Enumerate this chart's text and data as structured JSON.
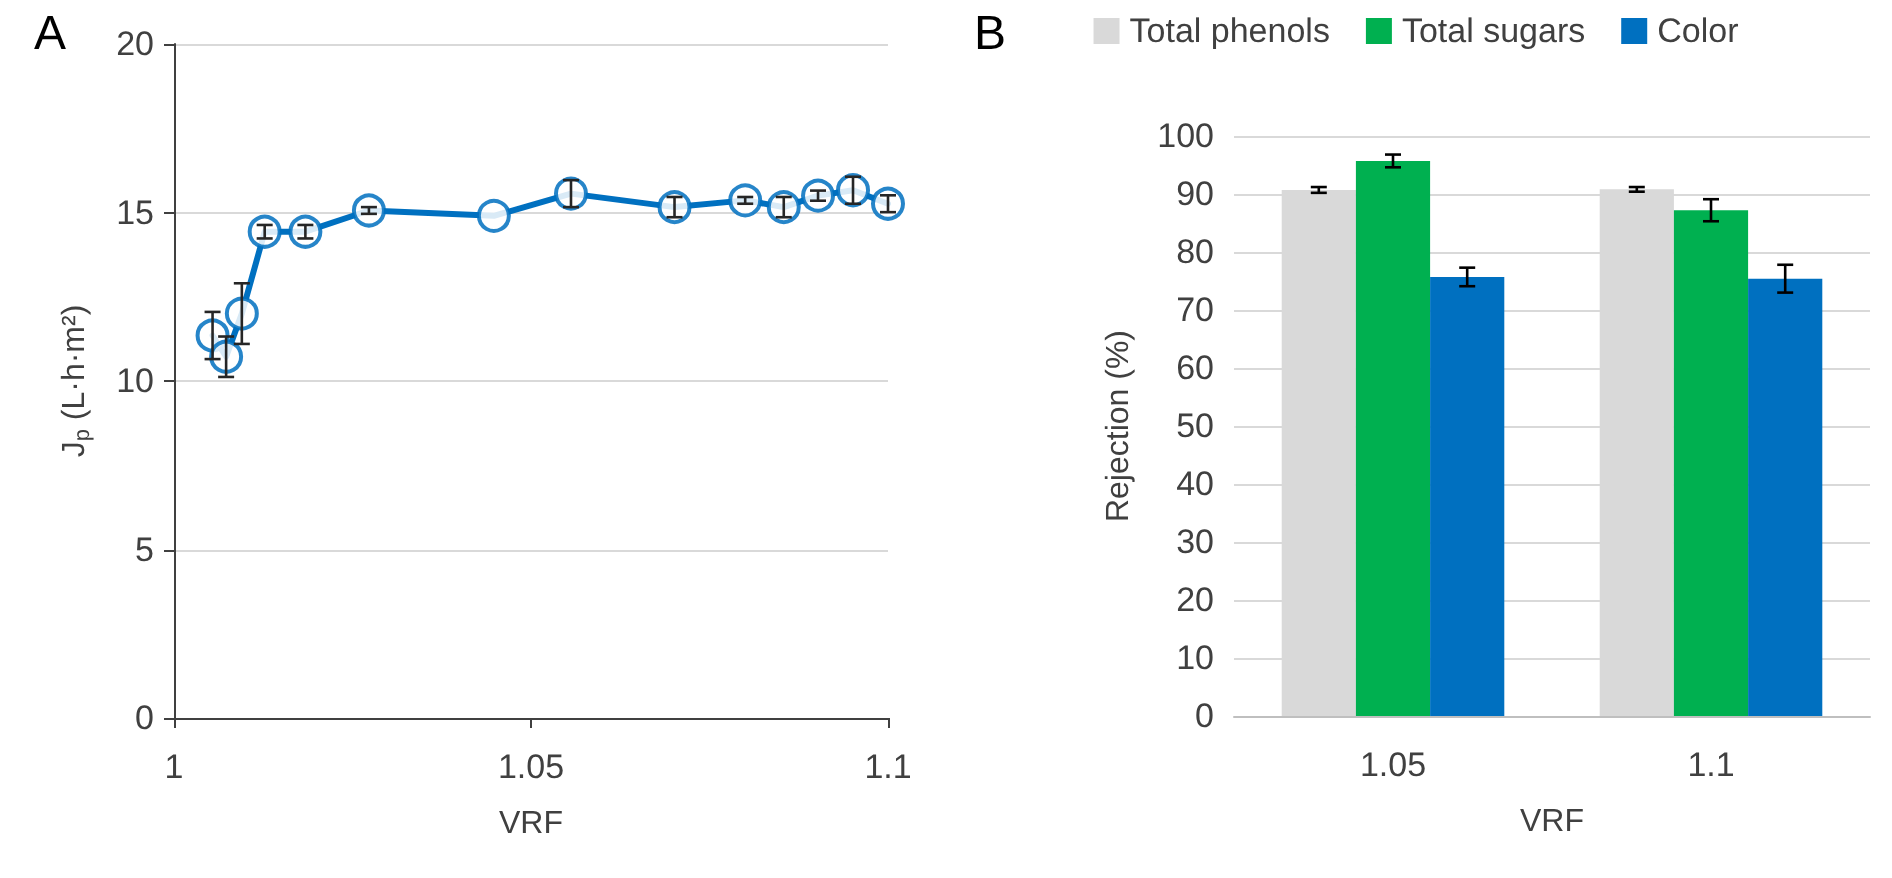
{
  "chart_data": [
    {
      "type": "line",
      "title": "A",
      "xlabel": "VRF",
      "ylabel": "J$_{p}$ (L·h·m²)",
      "xlim": [
        1,
        1.1
      ],
      "xticks": [
        1,
        1.05,
        1.1
      ],
      "ylim": [
        0,
        20
      ],
      "yticks": [
        0,
        5,
        10,
        15,
        20
      ],
      "grid": "y",
      "legend": false,
      "marker": "circle",
      "line_style": "solid",
      "series": [
        {
          "color": "#0070c0",
          "x": [
            1.0054,
            1.0073,
            1.0095,
            1.0127,
            1.0184,
            1.0273,
            1.0448,
            1.0556,
            1.0701,
            1.08,
            1.0854,
            1.0902,
            1.0951,
            1.1
          ],
          "values": [
            11.35,
            10.72,
            12.0,
            14.43,
            14.43,
            15.06,
            14.9,
            15.56,
            15.16,
            15.36,
            15.16,
            15.5,
            15.66,
            15.26
          ],
          "errors": [
            0.7,
            0.6,
            0.9,
            0.2,
            0.2,
            0.1,
            null,
            0.4,
            0.3,
            0.1,
            0.3,
            0.15,
            0.4,
            0.25
          ]
        }
      ]
    },
    {
      "type": "bar",
      "title": "B",
      "xlabel": "VRF",
      "ylabel": "Rejection (%)",
      "categories": [
        "1.05",
        "1.1"
      ],
      "ylim": [
        0,
        100
      ],
      "yticks": [
        0,
        10,
        20,
        30,
        40,
        50,
        60,
        70,
        80,
        90,
        100
      ],
      "grid": "y",
      "legend": "top",
      "series": [
        {
          "name": "Total phenols",
          "color": "#d9d9d9",
          "values": [
            90.7,
            90.8
          ],
          "errors": [
            0.5,
            0.4
          ]
        },
        {
          "name": "Total sugars",
          "color": "#00b050",
          "values": [
            95.7,
            87.2
          ],
          "errors": [
            1.1,
            1.9
          ]
        },
        {
          "name": "Color",
          "color": "#0070c0",
          "values": [
            75.7,
            75.4
          ],
          "errors": [
            1.6,
            2.4
          ]
        }
      ]
    }
  ]
}
